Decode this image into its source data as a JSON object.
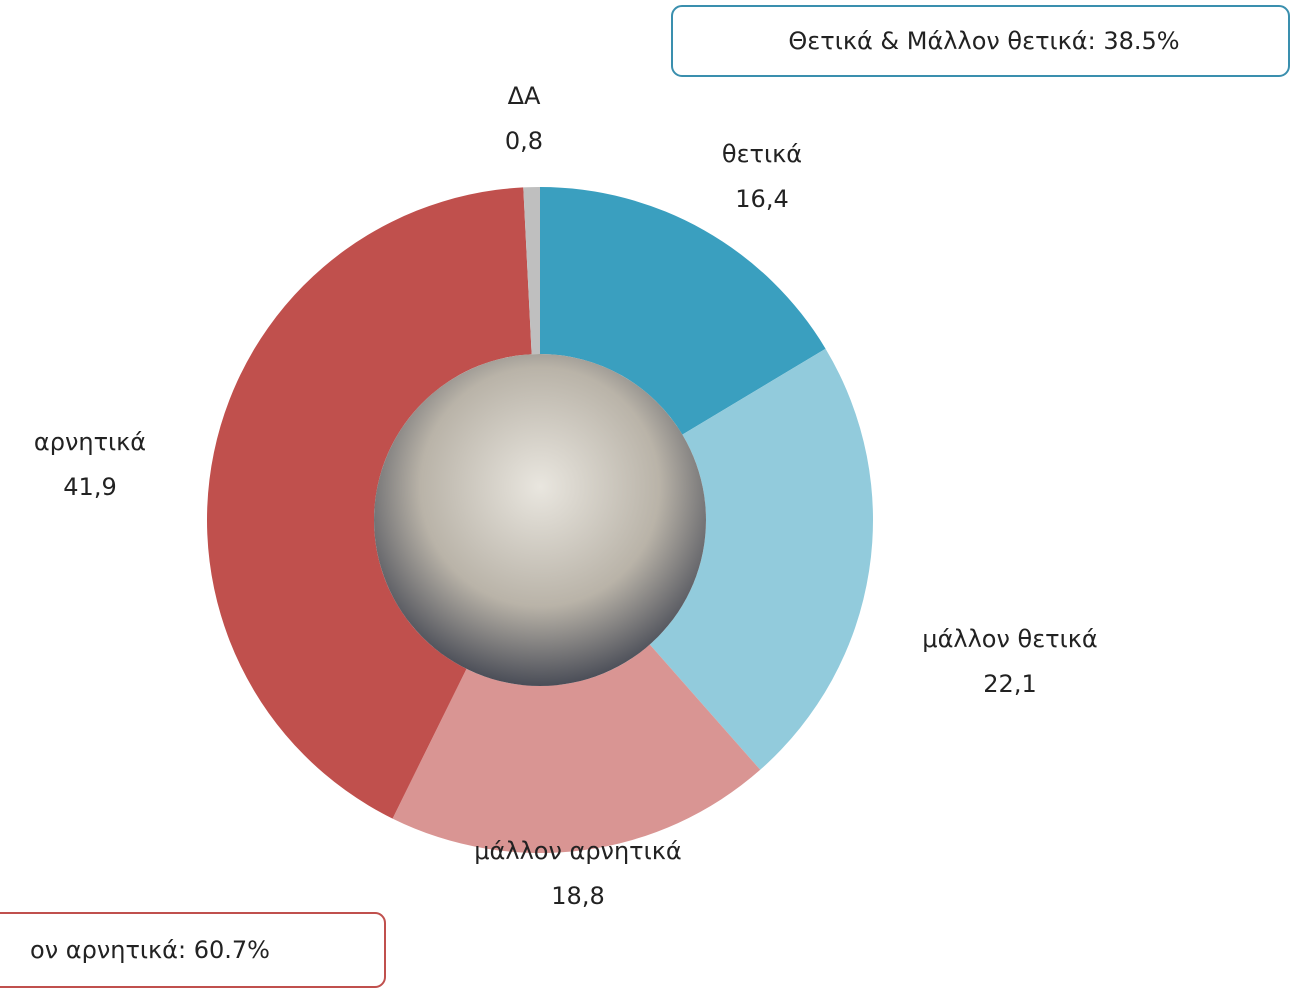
{
  "chart_data": {
    "type": "donut",
    "categories": [
      "θετικά",
      "μάλλον θετικά",
      "μάλλον αρνητικά",
      "αρνητικά",
      "ΔΑ"
    ],
    "values": [
      16.4,
      22.1,
      18.8,
      41.9,
      0.8
    ],
    "value_labels": [
      "16,4",
      "22,1",
      "18,8",
      "41,9",
      "0,8"
    ],
    "colors": [
      "#3a9fbf",
      "#92cbdc",
      "#d99593",
      "#c0504d",
      "#bfbfbf"
    ],
    "annotations": [
      "Θετικά & Μάλλον θετικά: 38.5%",
      "ον αρνητικά: 60.7%"
    ]
  }
}
